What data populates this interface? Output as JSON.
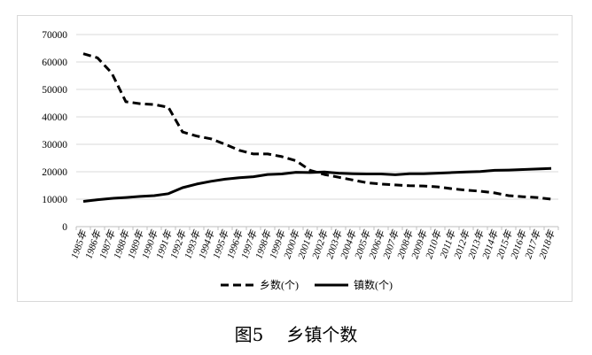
{
  "chart_data": {
    "type": "line",
    "title": "",
    "xlabel": "",
    "ylabel": "",
    "ylim": [
      0,
      70000
    ],
    "yticks": [
      0,
      10000,
      20000,
      30000,
      40000,
      50000,
      60000,
      70000
    ],
    "grid": "horizontal",
    "legend_position": "bottom",
    "categories": [
      "1985年",
      "1986年",
      "1987年",
      "1988年",
      "1989年",
      "1990年",
      "1991年",
      "1992年",
      "1993年",
      "1994年",
      "1995年",
      "1996年",
      "1997年",
      "1998年",
      "1999年",
      "2000年",
      "2001年",
      "2002年",
      "2003年",
      "2004年",
      "2005年",
      "2006年",
      "2007年",
      "2008年",
      "2009年",
      "2010年",
      "2011年",
      "2012年",
      "2013年",
      "2014年",
      "2015年",
      "2016年",
      "2017年",
      "2018年"
    ],
    "series": [
      {
        "name": "乡数(个)",
        "style": "dashed",
        "color": "#000000",
        "values": [
          63000,
          61500,
          56000,
          45500,
          44800,
          44500,
          43500,
          34500,
          33000,
          32000,
          30000,
          27800,
          26500,
          26500,
          25500,
          24000,
          20500,
          19000,
          18000,
          17000,
          16000,
          15500,
          15200,
          14900,
          14800,
          14500,
          13800,
          13300,
          12900,
          12300,
          11300,
          10900,
          10600,
          10000
        ]
      },
      {
        "name": "镇数(个)",
        "style": "solid",
        "color": "#000000",
        "values": [
          9200,
          9800,
          10300,
          10600,
          11000,
          11300,
          12000,
          14200,
          15500,
          16500,
          17300,
          17800,
          18200,
          19000,
          19200,
          19800,
          19700,
          19900,
          19500,
          19300,
          19200,
          19200,
          18900,
          19300,
          19300,
          19500,
          19700,
          19900,
          20100,
          20500,
          20600,
          20800,
          21000,
          21200
        ]
      }
    ]
  },
  "caption": {
    "figure_no": "图5",
    "title": "乡镇个数"
  }
}
